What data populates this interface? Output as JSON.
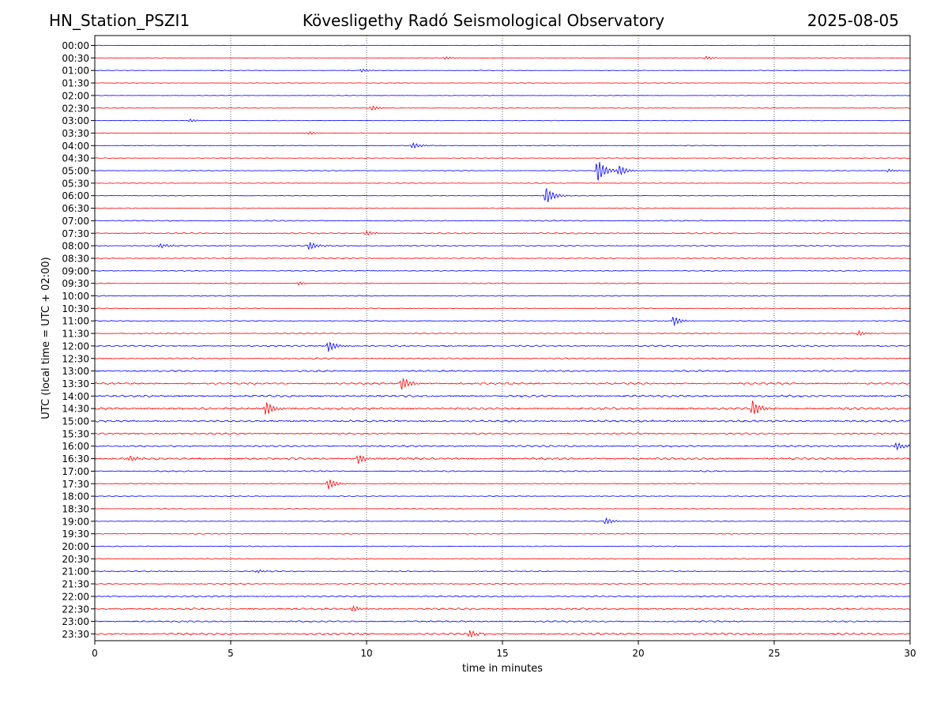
{
  "header": {
    "station": "HN_Station_PSZI1",
    "observatory": "Kövesligethy Radó Seismological Observatory",
    "date": "2025-08-05"
  },
  "chart_data": {
    "type": "line",
    "chart_kind": "helicorder",
    "xlabel": "time in minutes",
    "ylabel": "UTC (local time = UTC + 02:00)",
    "xlim": [
      0,
      30
    ],
    "xticks": [
      0,
      5,
      10,
      15,
      20,
      25,
      30
    ],
    "grid": "vertical dotted lines at each x tick",
    "trace_colors": [
      "#0000ff",
      "#ff0000"
    ],
    "rows": [
      "00:00",
      "00:30",
      "01:00",
      "01:30",
      "02:00",
      "02:30",
      "03:00",
      "03:30",
      "04:00",
      "04:30",
      "05:00",
      "05:30",
      "06:00",
      "06:30",
      "07:00",
      "07:30",
      "08:00",
      "08:30",
      "09:00",
      "09:30",
      "10:00",
      "10:30",
      "11:00",
      "11:30",
      "12:00",
      "12:30",
      "13:00",
      "13:30",
      "14:00",
      "14:30",
      "15:00",
      "15:30",
      "16:00",
      "16:30",
      "17:00",
      "17:30",
      "18:00",
      "18:30",
      "19:00",
      "19:30",
      "20:00",
      "20:30",
      "21:00",
      "21:30",
      "22:00",
      "22:30",
      "23:00",
      "23:30"
    ],
    "baseline_noise": [
      0.4,
      0.4,
      0.4,
      0.4,
      0.4,
      0.4,
      0.4,
      0.4,
      0.5,
      0.5,
      0.5,
      0.5,
      0.5,
      0.6,
      0.8,
      0.9,
      0.8,
      0.9,
      0.7,
      0.7,
      0.7,
      0.7,
      0.7,
      0.8,
      1.0,
      1.0,
      1.2,
      1.3,
      1.4,
      1.6,
      1.4,
      1.2,
      1.2,
      1.5,
      0.9,
      0.7,
      0.6,
      0.6,
      0.6,
      0.7,
      0.6,
      0.8,
      0.8,
      0.9,
      1.1,
      1.3,
      1.1,
      1.5
    ],
    "events": [
      {
        "row": "00:30",
        "x": 12.9,
        "amp": 2
      },
      {
        "row": "00:30",
        "x": 22.5,
        "amp": 2
      },
      {
        "row": "01:00",
        "x": 9.8,
        "amp": 2
      },
      {
        "row": "02:30",
        "x": 10.2,
        "amp": 3
      },
      {
        "row": "03:00",
        "x": 3.5,
        "amp": 2
      },
      {
        "row": "03:30",
        "x": 7.9,
        "amp": 2
      },
      {
        "row": "04:00",
        "x": 11.7,
        "amp": 4
      },
      {
        "row": "05:00",
        "x": 18.5,
        "amp": 15
      },
      {
        "row": "05:00",
        "x": 19.3,
        "amp": 6
      },
      {
        "row": "05:00",
        "x": 29.2,
        "amp": 2
      },
      {
        "row": "06:00",
        "x": 16.6,
        "amp": 11
      },
      {
        "row": "07:30",
        "x": 10.0,
        "amp": 3
      },
      {
        "row": "08:00",
        "x": 2.4,
        "amp": 3
      },
      {
        "row": "08:00",
        "x": 7.9,
        "amp": 5
      },
      {
        "row": "09:30",
        "x": 7.5,
        "amp": 2
      },
      {
        "row": "11:00",
        "x": 21.3,
        "amp": 6
      },
      {
        "row": "11:30",
        "x": 28.1,
        "amp": 3
      },
      {
        "row": "12:00",
        "x": 8.6,
        "amp": 7
      },
      {
        "row": "13:30",
        "x": 11.3,
        "amp": 8
      },
      {
        "row": "14:30",
        "x": 6.3,
        "amp": 9
      },
      {
        "row": "14:30",
        "x": 24.2,
        "amp": 10
      },
      {
        "row": "16:00",
        "x": 29.5,
        "amp": 5
      },
      {
        "row": "16:30",
        "x": 9.7,
        "amp": 6
      },
      {
        "row": "16:30",
        "x": 1.3,
        "amp": 4
      },
      {
        "row": "17:30",
        "x": 8.6,
        "amp": 7
      },
      {
        "row": "19:00",
        "x": 18.8,
        "amp": 4
      },
      {
        "row": "21:00",
        "x": 6.0,
        "amp": 2
      },
      {
        "row": "22:30",
        "x": 9.5,
        "amp": 4
      },
      {
        "row": "23:30",
        "x": 13.8,
        "amp": 5
      }
    ]
  }
}
